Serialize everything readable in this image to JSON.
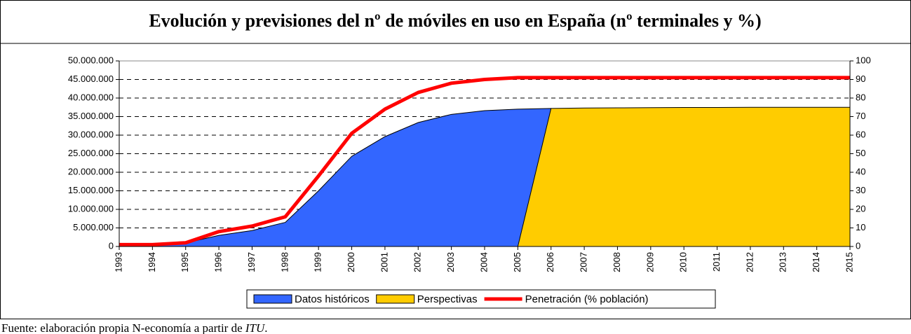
{
  "chart_data": {
    "type": "area",
    "title": "Evolución y previsiones del nº de móviles en uso en España (nº terminales y %)",
    "categories": [
      "1993",
      "1994",
      "1995",
      "1996",
      "1997",
      "1998",
      "1999",
      "2000",
      "2001",
      "2002",
      "2003",
      "2004",
      "2005",
      "2006",
      "2007",
      "2008",
      "2009",
      "2010",
      "2011",
      "2012",
      "2013",
      "2014",
      "2015"
    ],
    "series": [
      {
        "name": "Datos históricos",
        "color": "#3366ff",
        "type": "area",
        "values": [
          250000,
          400000,
          950000,
          3000000,
          4300000,
          6500000,
          15000000,
          24300000,
          29600000,
          33400000,
          35600000,
          36600000,
          37000000,
          37200000,
          null,
          null,
          null,
          null,
          null,
          null,
          null,
          null,
          null
        ]
      },
      {
        "name": "Perspectivas",
        "color": "#ffcc00",
        "type": "area",
        "values": [
          null,
          null,
          null,
          null,
          null,
          null,
          null,
          null,
          null,
          null,
          null,
          null,
          0,
          37200000,
          37300000,
          37350000,
          37400000,
          37450000,
          37450000,
          37500000,
          37500000,
          37500000,
          37500000
        ]
      },
      {
        "name": "Penetración (% población)",
        "color": "#ff0000",
        "type": "line",
        "axis": "y2",
        "values": [
          1,
          1,
          2,
          8,
          11,
          16,
          38,
          61,
          74,
          83,
          88,
          90,
          91,
          91,
          91,
          91,
          91,
          91,
          91,
          91,
          91,
          91,
          91
        ]
      }
    ],
    "ylim": [
      0,
      50000000
    ],
    "yticks": [
      {
        "value": 0,
        "label": "0"
      },
      {
        "value": 5000000,
        "label": "5.000.000"
      },
      {
        "value": 10000000,
        "label": "10.000.000"
      },
      {
        "value": 15000000,
        "label": "15.000.000"
      },
      {
        "value": 20000000,
        "label": "20.000.000"
      },
      {
        "value": 25000000,
        "label": "25.000.000"
      },
      {
        "value": 30000000,
        "label": "30.000.000"
      },
      {
        "value": 35000000,
        "label": "35.000.000"
      },
      {
        "value": 40000000,
        "label": "40.000.000"
      },
      {
        "value": 45000000,
        "label": "45.000.000"
      },
      {
        "value": 50000000,
        "label": "50.000.000"
      }
    ],
    "y2lim": [
      0,
      100
    ],
    "y2ticks": [
      0,
      10,
      20,
      30,
      40,
      50,
      60,
      70,
      80,
      90,
      100
    ],
    "grid": true,
    "legend": "bottom",
    "source": {
      "text": "Fuente: elaboración propia N-economía a partir de ",
      "italic": "ITU",
      "end": "."
    }
  }
}
